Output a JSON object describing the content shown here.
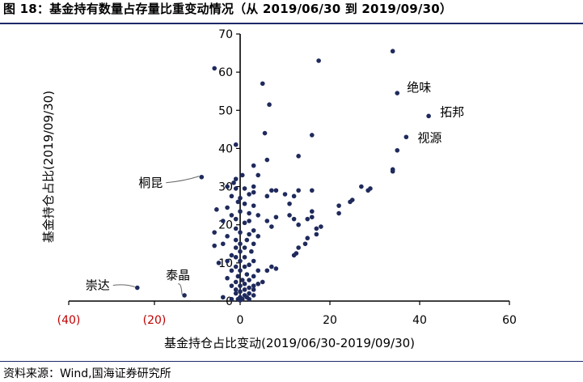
{
  "header": {
    "title": "图 18：基金持有数量占存量比重变动情况（从 2019/06/30 到 2019/09/30）"
  },
  "footer": {
    "source": "资料来源：Wind,国海证券研究所"
  },
  "chart_data": {
    "type": "scatter",
    "title": "图 18：基金持有数量占存量比重变动情况（从 2019/06/30 到 2019/09/30）",
    "xlabel": "基金持仓占比变动(2019/06/30-2019/09/30)",
    "ylabel": "基金持仓占比(2019/09/30)",
    "xlim": [
      -40,
      60
    ],
    "ylim": [
      0,
      70
    ],
    "x_ticks": [
      -40,
      -20,
      0,
      20,
      40,
      60
    ],
    "x_tick_labels": [
      "(40)",
      "(20)",
      "0",
      "20",
      "40",
      "60"
    ],
    "y_ticks": [
      0,
      10,
      20,
      30,
      40,
      50,
      60,
      70
    ],
    "y_tick_labels": [
      "0",
      "10",
      "20",
      "30",
      "40",
      "50",
      "60",
      "70"
    ],
    "grid": false,
    "marker_color": "#1f2a5c",
    "negative_tick_color": "#c00000",
    "annotations": [
      {
        "label": "绝味",
        "x": 35.0,
        "y": 54.5
      },
      {
        "label": "拓邦",
        "x": 42.0,
        "y": 48.5
      },
      {
        "label": "视源",
        "x": 37.0,
        "y": 43.0
      },
      {
        "label": "桐昆",
        "x": -9.0,
        "y": 32.5
      },
      {
        "label": "崇达",
        "x": -24.0,
        "y": 3.5
      },
      {
        "label": "泰晶",
        "x": -13.0,
        "y": 1.5
      }
    ],
    "points": [
      [
        34.0,
        65.5
      ],
      [
        17.5,
        63.0
      ],
      [
        -6.0,
        61.0
      ],
      [
        5.0,
        57.0
      ],
      [
        6.5,
        51.5
      ],
      [
        35.0,
        54.5
      ],
      [
        42.0,
        48.5
      ],
      [
        37.0,
        43.0
      ],
      [
        35.0,
        39.5
      ],
      [
        16.0,
        43.5
      ],
      [
        5.5,
        44.0
      ],
      [
        -1.0,
        41.0
      ],
      [
        6.0,
        37.0
      ],
      [
        13.0,
        38.0
      ],
      [
        34.0,
        34.0
      ],
      [
        34.0,
        34.5
      ],
      [
        -9.0,
        32.5
      ],
      [
        3.0,
        35.5
      ],
      [
        -1.0,
        32.0
      ],
      [
        0.5,
        33.0
      ],
      [
        4.0,
        33.0
      ],
      [
        -1.5,
        31.0
      ],
      [
        -3.0,
        30.0
      ],
      [
        -1.0,
        29.5
      ],
      [
        1.0,
        29.5
      ],
      [
        3.0,
        30.0
      ],
      [
        7.0,
        29.0
      ],
      [
        8.0,
        29.0
      ],
      [
        13.0,
        29.0
      ],
      [
        16.0,
        29.0
      ],
      [
        27.0,
        30.0
      ],
      [
        28.5,
        29.0
      ],
      [
        29.0,
        29.5
      ],
      [
        -2.0,
        27.5
      ],
      [
        0.0,
        27.0
      ],
      [
        2.0,
        28.0
      ],
      [
        3.0,
        28.5
      ],
      [
        6.0,
        27.5
      ],
      [
        10.0,
        28.0
      ],
      [
        12.0,
        27.5
      ],
      [
        24.5,
        26.0
      ],
      [
        25.0,
        26.5
      ],
      [
        -0.5,
        26.0
      ],
      [
        1.0,
        25.5
      ],
      [
        3.0,
        25.0
      ],
      [
        11.0,
        25.5
      ],
      [
        22.0,
        25.0
      ],
      [
        -3.0,
        24.5
      ],
      [
        -5.5,
        24.0
      ],
      [
        0.0,
        23.5
      ],
      [
        2.0,
        23.0
      ],
      [
        16.0,
        23.5
      ],
      [
        22.0,
        23.0
      ],
      [
        -2.0,
        22.5
      ],
      [
        4.0,
        22.5
      ],
      [
        8.0,
        22.0
      ],
      [
        11.0,
        22.5
      ],
      [
        16.0,
        22.0
      ],
      [
        -4.0,
        21.0
      ],
      [
        -1.0,
        21.5
      ],
      [
        2.0,
        21.0
      ],
      [
        6.0,
        21.0
      ],
      [
        12.0,
        21.5
      ],
      [
        15.0,
        21.5
      ],
      [
        1.0,
        20.5
      ],
      [
        7.0,
        19.5
      ],
      [
        13.0,
        20.0
      ],
      [
        18.0,
        19.5
      ],
      [
        17.0,
        19.0
      ],
      [
        -1.0,
        19.0
      ],
      [
        3.0,
        18.5
      ],
      [
        -6.0,
        18.0
      ],
      [
        0.0,
        18.0
      ],
      [
        2.0,
        17.5
      ],
      [
        17.0,
        17.5
      ],
      [
        -3.0,
        17.0
      ],
      [
        4.0,
        17.0
      ],
      [
        15.0,
        16.5
      ],
      [
        -1.0,
        16.0
      ],
      [
        1.5,
        16.0
      ],
      [
        -4.0,
        15.0
      ],
      [
        0.0,
        15.0
      ],
      [
        3.0,
        15.0
      ],
      [
        14.5,
        15.0
      ],
      [
        -6.0,
        14.5
      ],
      [
        -1.0,
        14.0
      ],
      [
        1.0,
        14.0
      ],
      [
        13.0,
        14.0
      ],
      [
        0.0,
        13.0
      ],
      [
        2.5,
        13.0
      ],
      [
        -2.0,
        12.0
      ],
      [
        12.5,
        12.5
      ],
      [
        -1.0,
        11.5
      ],
      [
        1.0,
        11.5
      ],
      [
        12.0,
        12.0
      ],
      [
        -3.0,
        10.5
      ],
      [
        0.0,
        10.5
      ],
      [
        3.0,
        10.5
      ],
      [
        -5.0,
        10.0
      ],
      [
        2.0,
        9.5
      ],
      [
        -1.0,
        9.0
      ],
      [
        1.0,
        9.0
      ],
      [
        7.0,
        9.0
      ],
      [
        8.0,
        8.5
      ],
      [
        -2.0,
        8.0
      ],
      [
        0.0,
        8.0
      ],
      [
        4.0,
        8.0
      ],
      [
        6.0,
        8.0
      ],
      [
        1.5,
        7.0
      ],
      [
        -0.5,
        6.5
      ],
      [
        3.0,
        6.5
      ],
      [
        -3.0,
        6.0
      ],
      [
        0.5,
        5.5
      ],
      [
        2.0,
        5.5
      ],
      [
        5.0,
        5.0
      ],
      [
        -1.0,
        5.0
      ],
      [
        1.0,
        4.5
      ],
      [
        3.0,
        4.0
      ],
      [
        4.0,
        4.5
      ],
      [
        -2.0,
        4.0
      ],
      [
        0.0,
        4.0
      ],
      [
        2.0,
        3.5
      ],
      [
        -24.0,
        3.5
      ],
      [
        -1.0,
        3.0
      ],
      [
        1.0,
        3.0
      ],
      [
        3.0,
        3.0
      ],
      [
        0.0,
        2.5
      ],
      [
        2.0,
        2.0
      ],
      [
        -1.0,
        2.0
      ],
      [
        1.0,
        1.5
      ],
      [
        -13.0,
        1.5
      ],
      [
        0.0,
        1.0
      ],
      [
        1.5,
        1.0
      ],
      [
        -0.5,
        0.5
      ],
      [
        0.5,
        0.5
      ],
      [
        -2.0,
        0.5
      ],
      [
        2.0,
        0.5
      ],
      [
        0.0,
        0.2
      ],
      [
        3.0,
        1.5
      ],
      [
        -4.0,
        1.0
      ]
    ]
  }
}
